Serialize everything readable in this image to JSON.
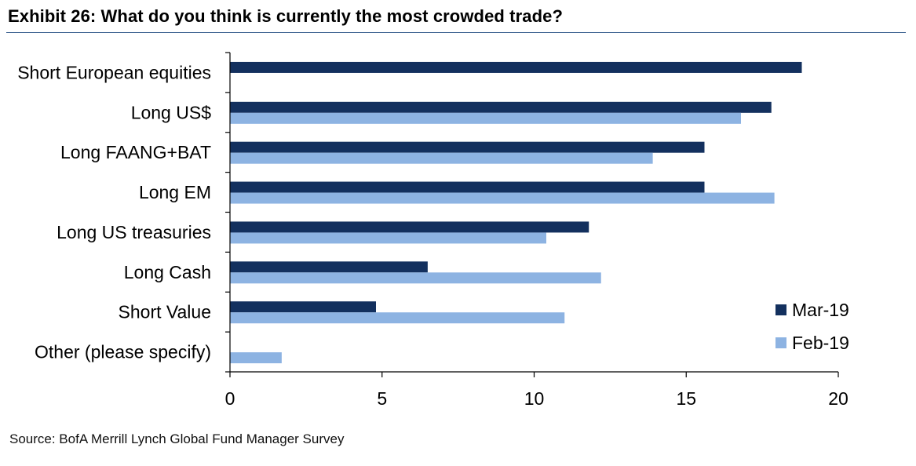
{
  "title": "Exhibit 26: What do you think is currently the most crowded trade?",
  "source": "Source: BofA Merrill Lynch Global Fund Manager Survey",
  "chart_data": {
    "type": "bar",
    "orientation": "horizontal",
    "title": "Exhibit 26: What do you think is currently the most crowded trade?",
    "categories": [
      "Short European equities",
      "Long US$",
      "Long FAANG+BAT",
      "Long EM",
      "Long US treasuries",
      "Long Cash",
      "Short Value",
      "Other (please specify)"
    ],
    "series": [
      {
        "name": "Mar-19",
        "color": "#13305e",
        "values": [
          18.8,
          17.8,
          15.6,
          15.6,
          11.8,
          6.5,
          4.8,
          0
        ]
      },
      {
        "name": "Feb-19",
        "color": "#8db3e2",
        "values": [
          null,
          16.8,
          13.9,
          17.9,
          10.4,
          12.2,
          11.0,
          1.7
        ]
      }
    ],
    "xlim": [
      0,
      20
    ],
    "xticks": [
      0,
      5,
      10,
      15,
      20
    ],
    "xlabel": "",
    "ylabel": "",
    "legend": "bottom-right",
    "grid": false
  }
}
